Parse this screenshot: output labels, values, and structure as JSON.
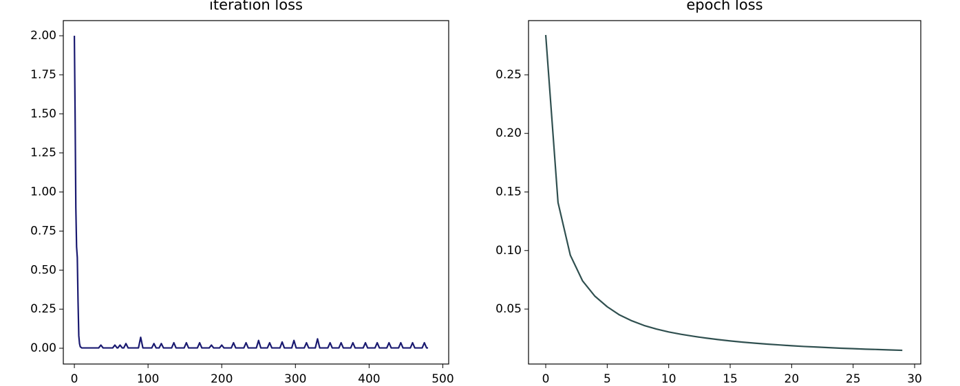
{
  "chart_data": [
    {
      "type": "line",
      "title": "iteration loss",
      "x": [
        0,
        1,
        2,
        3,
        4,
        5,
        6,
        7,
        8,
        10,
        33,
        36,
        39,
        52,
        55,
        58,
        59,
        62,
        65,
        67,
        70,
        73,
        87,
        90,
        93,
        105,
        108,
        111,
        115,
        118,
        121,
        132,
        135,
        138,
        149,
        152,
        155,
        167,
        170,
        173,
        183,
        186,
        189,
        197,
        200,
        203,
        213,
        216,
        219,
        230,
        233,
        236,
        247,
        250,
        253,
        262,
        265,
        268,
        279,
        282,
        285,
        295,
        298,
        301,
        312,
        315,
        318,
        327,
        330,
        333,
        344,
        347,
        350,
        359,
        362,
        365,
        375,
        378,
        381,
        392,
        395,
        398,
        408,
        411,
        414,
        424,
        427,
        430,
        440,
        443,
        446,
        456,
        459,
        462,
        472,
        475,
        478,
        480
      ],
      "series": [
        {
          "name": "iteration loss",
          "color": "#191970",
          "values": [
            2.0,
            1.5,
            0.9,
            0.65,
            0.58,
            0.3,
            0.08,
            0.03,
            0.01,
            0.002,
            0.002,
            0.02,
            0.002,
            0.002,
            0.02,
            0.002,
            0.002,
            0.02,
            0.002,
            0.002,
            0.03,
            0.002,
            0.002,
            0.07,
            0.002,
            0.002,
            0.03,
            0.002,
            0.002,
            0.03,
            0.002,
            0.002,
            0.035,
            0.002,
            0.002,
            0.035,
            0.002,
            0.002,
            0.035,
            0.002,
            0.002,
            0.02,
            0.002,
            0.002,
            0.02,
            0.002,
            0.002,
            0.035,
            0.002,
            0.002,
            0.035,
            0.002,
            0.002,
            0.05,
            0.002,
            0.002,
            0.035,
            0.002,
            0.002,
            0.04,
            0.002,
            0.002,
            0.05,
            0.002,
            0.002,
            0.035,
            0.002,
            0.002,
            0.06,
            0.002,
            0.002,
            0.035,
            0.002,
            0.002,
            0.035,
            0.002,
            0.002,
            0.035,
            0.002,
            0.002,
            0.035,
            0.002,
            0.002,
            0.035,
            0.002,
            0.002,
            0.035,
            0.002,
            0.002,
            0.035,
            0.002,
            0.002,
            0.035,
            0.002,
            0.002,
            0.035,
            0.002,
            0.002
          ]
        }
      ],
      "xlim": [
        -15,
        508
      ],
      "xticks": [
        0,
        100,
        200,
        300,
        400,
        500
      ],
      "ylim": [
        -0.101,
        2.097
      ],
      "yticks": [
        {
          "value": 0,
          "label": "0.00"
        },
        {
          "value": 0.25,
          "label": "0.25"
        },
        {
          "value": 0.5,
          "label": "0.50"
        },
        {
          "value": 0.75,
          "label": "0.75"
        },
        {
          "value": 1,
          "label": "1.00"
        },
        {
          "value": 1.25,
          "label": "1.25"
        },
        {
          "value": 1.5,
          "label": "1.50"
        },
        {
          "value": 1.75,
          "label": "1.75"
        },
        {
          "value": 2,
          "label": "2.00"
        }
      ]
    },
    {
      "type": "line",
      "title": "epoch loss",
      "x": [
        0,
        1,
        2,
        3,
        4,
        5,
        6,
        7,
        8,
        9,
        10,
        11,
        12,
        13,
        14,
        15,
        16,
        17,
        18,
        19,
        20,
        21,
        22,
        23,
        24,
        25,
        26,
        27,
        28,
        29
      ],
      "series": [
        {
          "name": "epoch loss",
          "color": "#2f4f4f",
          "values": [
            0.284,
            0.141,
            0.096,
            0.074,
            0.061,
            0.052,
            0.045,
            0.04,
            0.036,
            0.033,
            0.0305,
            0.0285,
            0.0268,
            0.0253,
            0.024,
            0.0228,
            0.0218,
            0.0209,
            0.0201,
            0.0194,
            0.0187,
            0.0181,
            0.0176,
            0.0171,
            0.0166,
            0.0162,
            0.0158,
            0.0155,
            0.0151,
            0.0148
          ]
        }
      ],
      "xlim": [
        -1.4,
        30.5
      ],
      "xticks": [
        0,
        5,
        10,
        15,
        20,
        25,
        30
      ],
      "ylim": [
        0.0031,
        0.2963
      ],
      "yticks": [
        0.05,
        {
          "value": 0.1,
          "label": "0.10"
        },
        0.15,
        {
          "value": 0.2,
          "label": "0.20"
        },
        0.25
      ]
    }
  ]
}
